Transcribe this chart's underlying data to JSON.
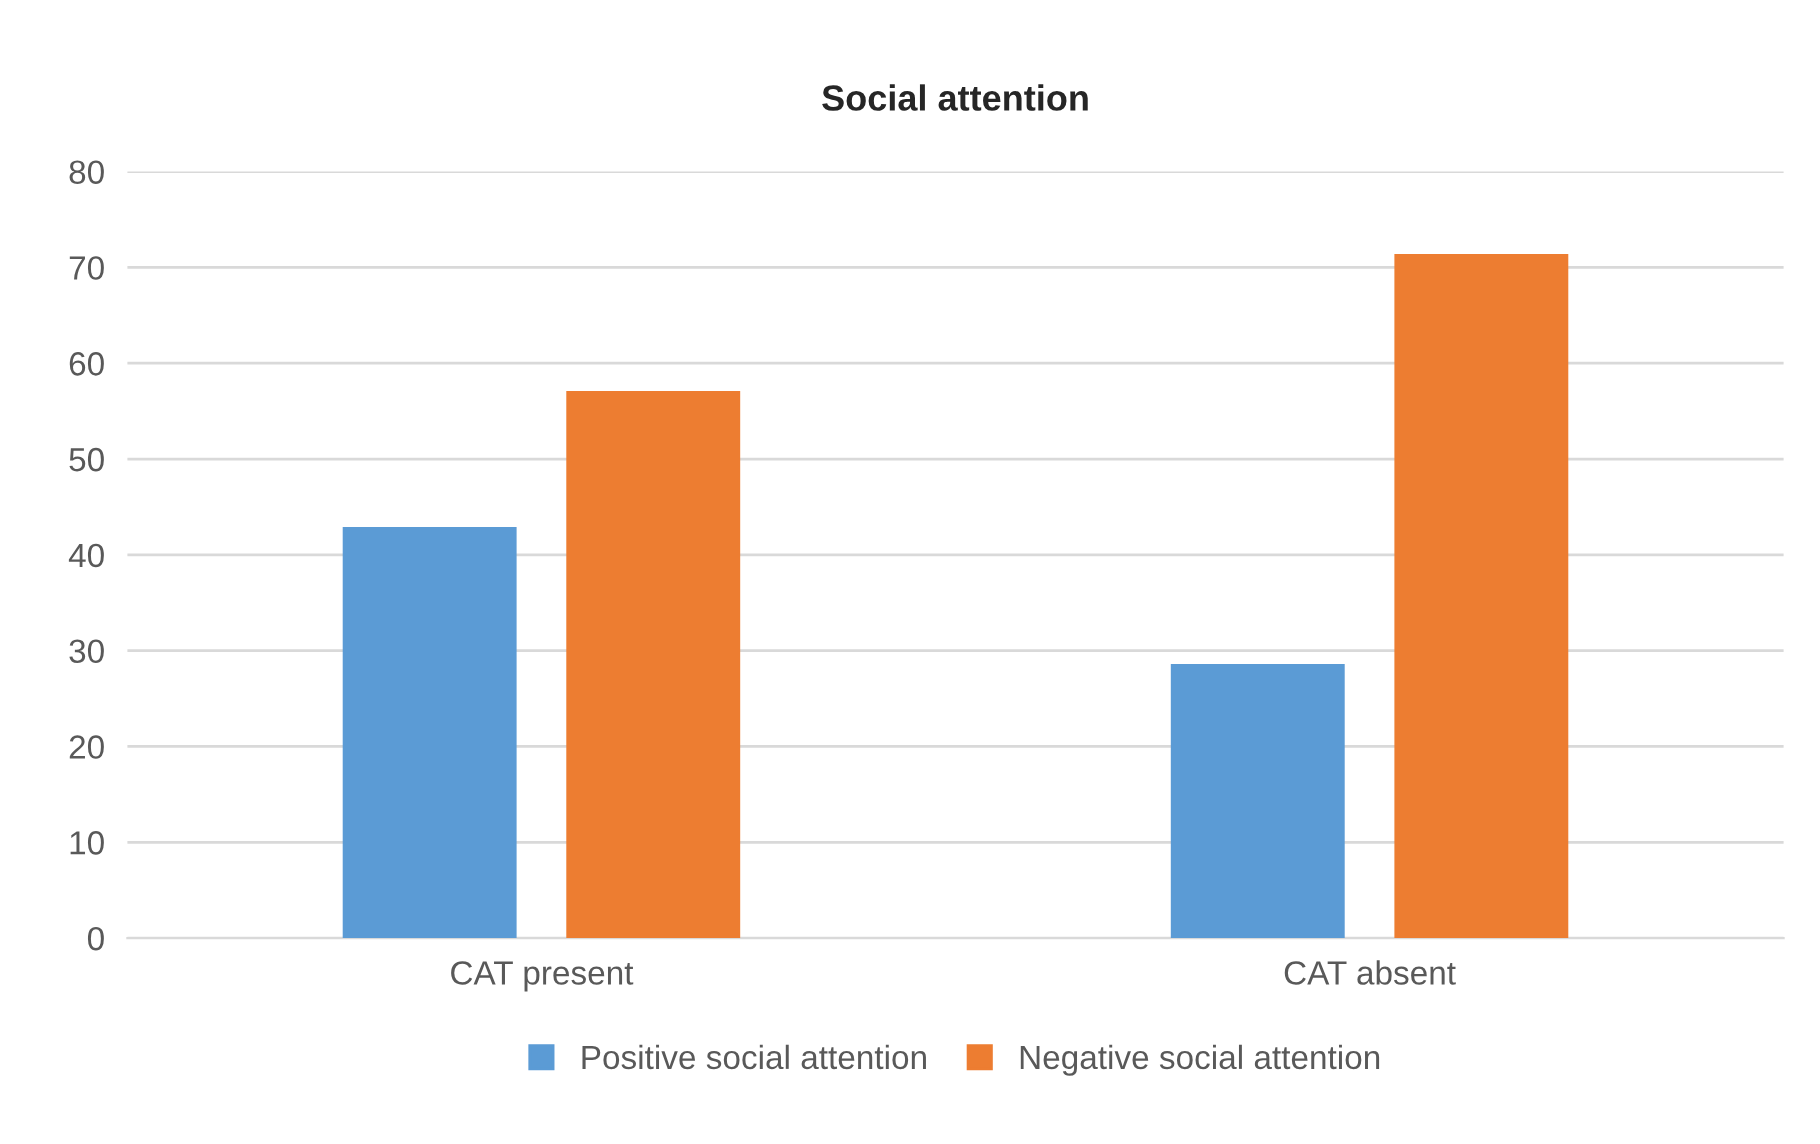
{
  "chart_data": {
    "type": "bar",
    "title": "Social attention",
    "categories": [
      "CAT present",
      "CAT absent"
    ],
    "series": [
      {
        "name": "Positive social attention",
        "color": "#5b9bd5",
        "values": [
          42.9,
          28.6
        ]
      },
      {
        "name": "Negative social attention",
        "color": "#ed7d31",
        "values": [
          57.1,
          71.4
        ]
      }
    ],
    "ylim": [
      0,
      80
    ],
    "yticks": [
      0,
      10,
      20,
      30,
      40,
      50,
      60,
      70,
      80
    ],
    "grid": "y",
    "legend": "bottom"
  }
}
